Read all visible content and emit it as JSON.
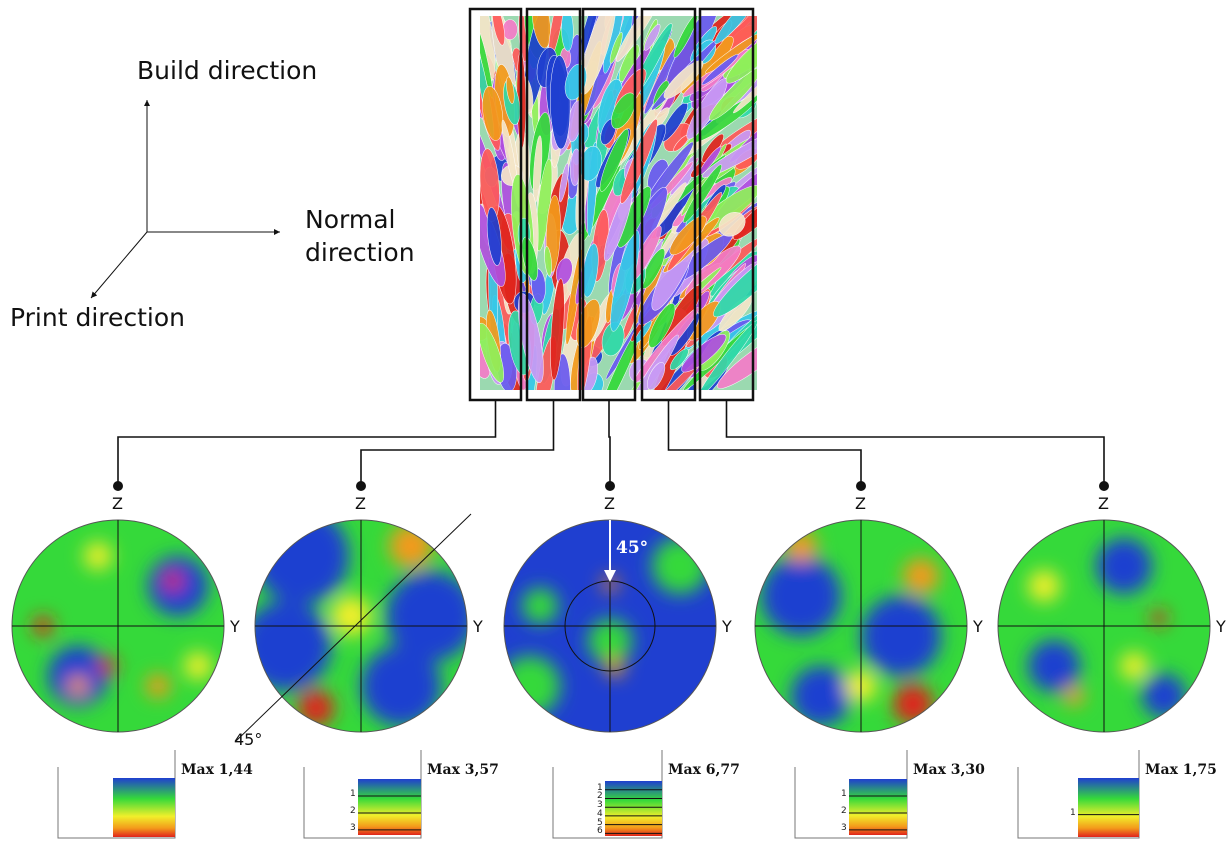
{
  "axes": {
    "build_direction": "Build direction",
    "normal_direction_line1": "Normal",
    "normal_direction_line2": "direction",
    "print_direction": "Print direction"
  },
  "pole_figures": [
    {
      "z_label": "Z",
      "y_label": "Y",
      "max_label": "Max 1,44",
      "scale_ticks": [],
      "annotation": ""
    },
    {
      "z_label": "Z",
      "y_label": "Y",
      "max_label": "Max 3,57",
      "scale_ticks": [
        "1",
        "2",
        "3"
      ],
      "annotation": "45°"
    },
    {
      "z_label": "Z",
      "y_label": "Y",
      "max_label": "Max 6,77",
      "scale_ticks": [
        "1",
        "2",
        "3",
        "4",
        "5",
        "6"
      ],
      "annotation": "45°"
    },
    {
      "z_label": "Z",
      "y_label": "Y",
      "max_label": "Max 3,30",
      "scale_ticks": [
        "1",
        "2",
        "3"
      ],
      "annotation": ""
    },
    {
      "z_label": "Z",
      "y_label": "Y",
      "max_label": "Max 1,75",
      "scale_ticks": [
        "1"
      ],
      "annotation": ""
    }
  ],
  "colors": {
    "blue": "#1f3fd0",
    "green": "#35d93a",
    "yellow": "#f1ef2b",
    "orange": "#f39a1b",
    "red": "#e0241c",
    "frame": "#111111"
  }
}
